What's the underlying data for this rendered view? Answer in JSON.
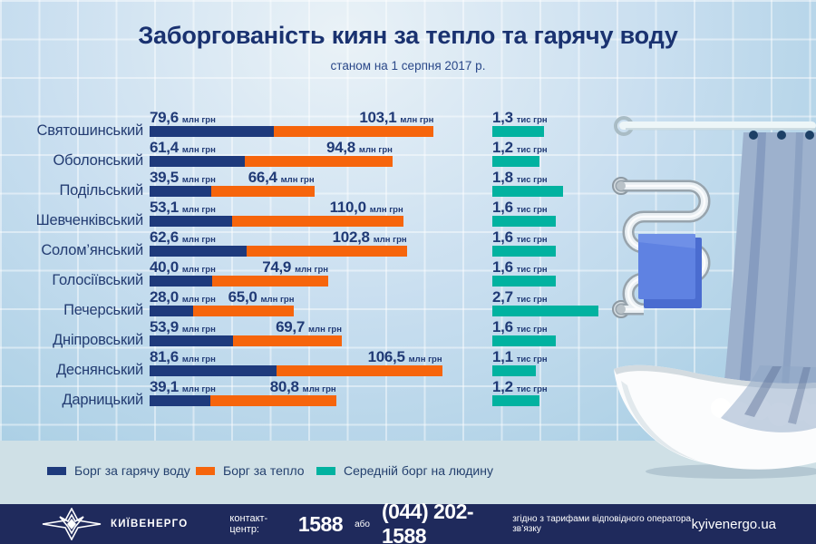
{
  "header": {
    "title": "Заборгованість киян за тепло та гарячу воду",
    "subtitle": "станом на 1 серпня 2017 р."
  },
  "chart_data": {
    "type": "bar",
    "orientation": "horizontal",
    "stacked": true,
    "categories": [
      "Святошинський",
      "Оболонський",
      "Подільський",
      "Шевченківський",
      "Солом’янський",
      "Голосіївський",
      "Печерський",
      "Дніпровський",
      "Деснянський",
      "Дарницький"
    ],
    "series": [
      {
        "name": "Борг за гарячу воду",
        "unit": "млн грн",
        "color": "#1e3a7c",
        "values": [
          79.6,
          61.4,
          39.5,
          53.1,
          62.6,
          40.0,
          28.0,
          53.9,
          81.6,
          39.1
        ]
      },
      {
        "name": "Борг за тепло",
        "unit": "млн грн",
        "color": "#f6650c",
        "values": [
          103.1,
          94.8,
          66.4,
          110.0,
          102.8,
          74.9,
          65.0,
          69.7,
          106.5,
          80.8
        ]
      },
      {
        "name": "Середній борг на людину",
        "unit": "тис грн",
        "color": "#01b2a0",
        "values": [
          1.3,
          1.2,
          1.8,
          1.6,
          1.6,
          1.6,
          2.7,
          1.6,
          1.1,
          1.2
        ]
      }
    ],
    "value_label_decimal_separator": ",",
    "legend_position": "bottom",
    "grid": false
  },
  "legend": {
    "items": [
      {
        "label": "Борг за гарячу воду",
        "color": "#1e3a7c"
      },
      {
        "label": "Борг за тепло",
        "color": "#f6650c"
      },
      {
        "label": "Середній борг на людину",
        "color": "#01b2a0"
      }
    ]
  },
  "footer": {
    "brand": "КИЇВЕНЕРГО",
    "contact_label": "контакт-центр:",
    "phone_short": "1588",
    "or_label": "або",
    "phone_full": "(044) 202-1588",
    "tariff_note": "згідно з тарифами відповідного оператора зв’язку",
    "website": "kyivenergo.ua"
  },
  "colors": {
    "hot_water": "#1e3a7c",
    "heat": "#f6650c",
    "average": "#01b2a0",
    "footer_bg": "#1f2a5c",
    "title_text": "#1a3270"
  }
}
